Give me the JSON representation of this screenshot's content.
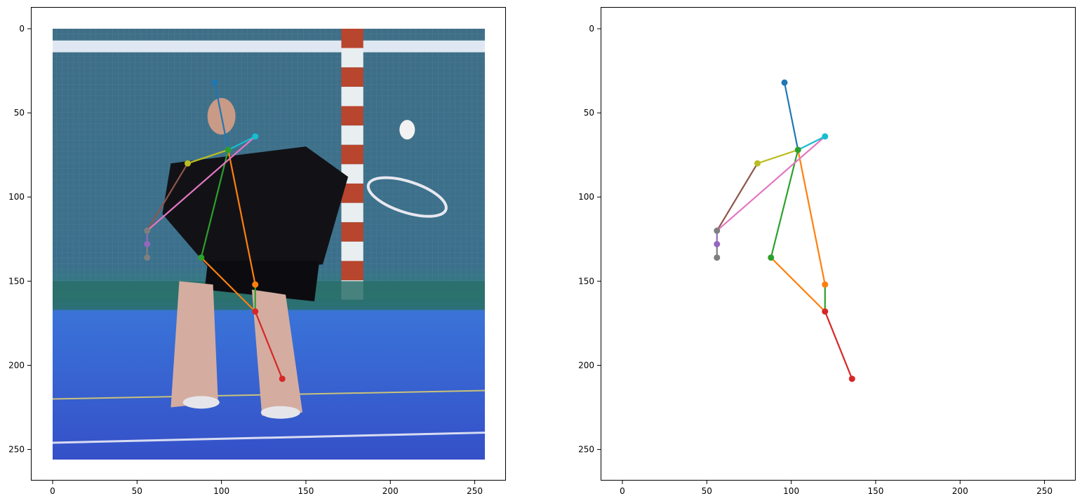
{
  "chart_data": [
    {
      "type": "scatter",
      "panel": "image-with-pose-overlay",
      "background": "photo of a badminton player on a blue indoor court, net and red-white striped post behind",
      "xlim": [
        -13,
        269
      ],
      "ylim": [
        268,
        -13
      ],
      "y_inverted": true,
      "image_extent": [
        0,
        256,
        256,
        0
      ],
      "xticks": [
        0,
        50,
        100,
        150,
        200,
        250
      ],
      "yticks": [
        0,
        50,
        100,
        150,
        200,
        250
      ],
      "grid": false
    },
    {
      "type": "scatter",
      "panel": "pose-only",
      "xlim": [
        -13,
        269
      ],
      "ylim": [
        268,
        -13
      ],
      "y_inverted": true,
      "xticks": [
        0,
        50,
        100,
        150,
        200,
        250
      ],
      "yticks": [
        0,
        50,
        100,
        150,
        200,
        250
      ],
      "grid": false
    }
  ],
  "pose": {
    "points": [
      {
        "x": 96,
        "y": 32,
        "color": "#1f77b4"
      },
      {
        "x": 120,
        "y": 64,
        "color": "#17becf"
      },
      {
        "x": 104,
        "y": 72,
        "color": "#2ca02c"
      },
      {
        "x": 80,
        "y": 80,
        "color": "#bcbd22"
      },
      {
        "x": 56,
        "y": 120,
        "color": "#7f7f7f"
      },
      {
        "x": 56,
        "y": 128,
        "color": "#9467bd"
      },
      {
        "x": 56,
        "y": 136,
        "color": "#7f7f7f"
      },
      {
        "x": 88,
        "y": 136,
        "color": "#2ca02c"
      },
      {
        "x": 120,
        "y": 152,
        "color": "#ff7f0e"
      },
      {
        "x": 120,
        "y": 168,
        "color": "#d62728"
      },
      {
        "x": 136,
        "y": 208,
        "color": "#d62728"
      }
    ],
    "bones": [
      {
        "from": [
          96,
          32
        ],
        "to": [
          104,
          72
        ],
        "color": "#1f77b4"
      },
      {
        "from": [
          104,
          72
        ],
        "to": [
          120,
          152
        ],
        "color": "#ff7f0e"
      },
      {
        "from": [
          88,
          136
        ],
        "to": [
          120,
          168
        ],
        "color": "#ff7f0e"
      },
      {
        "from": [
          104,
          72
        ],
        "to": [
          88,
          136
        ],
        "color": "#2ca02c"
      },
      {
        "from": [
          120,
          152
        ],
        "to": [
          120,
          168
        ],
        "color": "#2ca02c"
      },
      {
        "from": [
          120,
          168
        ],
        "to": [
          136,
          208
        ],
        "color": "#d62728"
      },
      {
        "from": [
          56,
          120
        ],
        "to": [
          56,
          128
        ],
        "color": "#9467bd"
      },
      {
        "from": [
          56,
          128
        ],
        "to": [
          56,
          136
        ],
        "color": "#7f7f7f"
      },
      {
        "from": [
          80,
          80
        ],
        "to": [
          56,
          120
        ],
        "color": "#8c564b"
      },
      {
        "from": [
          120,
          64
        ],
        "to": [
          56,
          120
        ],
        "color": "#e377c2"
      },
      {
        "from": [
          80,
          80
        ],
        "to": [
          104,
          72
        ],
        "color": "#bcbd22"
      },
      {
        "from": [
          104,
          72
        ],
        "to": [
          120,
          64
        ],
        "color": "#17becf"
      }
    ]
  }
}
